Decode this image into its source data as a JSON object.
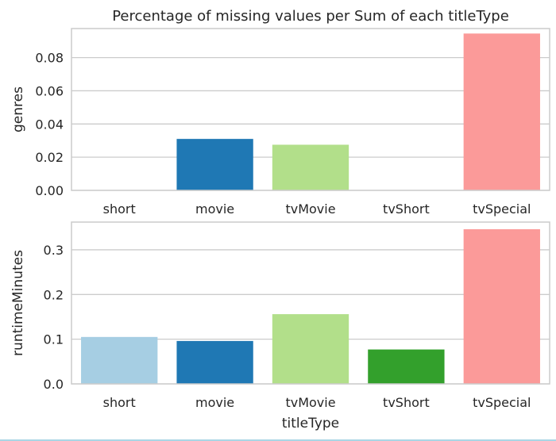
{
  "figure": {
    "title": "Percentage of missing values per Sum of each titleType"
  },
  "chart_data": [
    {
      "type": "bar",
      "categories": [
        "short",
        "movie",
        "tvMovie",
        "tvShort",
        "tvSpecial"
      ],
      "values": [
        0.0,
        0.031,
        0.0275,
        0.0,
        0.0945
      ],
      "colors": [
        "#a6cee3",
        "#1f78b4",
        "#b2df8a",
        "#33a02c",
        "#fb9a99"
      ],
      "ylabel": "genres",
      "xlabel": "",
      "ylim": [
        0,
        0.0975
      ],
      "yticks": [
        0.0,
        0.02,
        0.04,
        0.06,
        0.08
      ],
      "ytick_labels": [
        "0.00",
        "0.02",
        "0.04",
        "0.06",
        "0.08"
      ],
      "grid": true
    },
    {
      "type": "bar",
      "categories": [
        "short",
        "movie",
        "tvMovie",
        "tvShort",
        "tvSpecial"
      ],
      "values": [
        0.105,
        0.096,
        0.156,
        0.077,
        0.346
      ],
      "colors": [
        "#a6cee3",
        "#1f78b4",
        "#b2df8a",
        "#33a02c",
        "#fb9a99"
      ],
      "ylabel": "runtimeMinutes",
      "xlabel": "titleType",
      "ylim": [
        0,
        0.362
      ],
      "yticks": [
        0.0,
        0.1,
        0.2,
        0.3
      ],
      "ytick_labels": [
        "0.0",
        "0.1",
        "0.2",
        "0.3"
      ],
      "grid": true
    }
  ]
}
